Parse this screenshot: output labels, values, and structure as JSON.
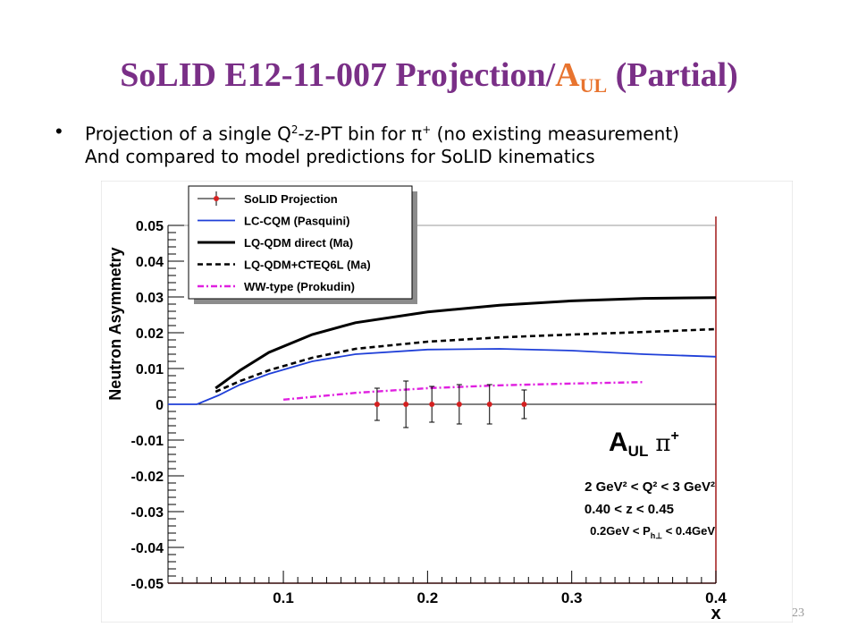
{
  "slide": {
    "title_main": "SoLID E12-11-007 Projection/",
    "title_a": "A",
    "title_sub": "UL",
    "title_tail": " (Partial)",
    "bullet_line1_pre": "Projection of a single Q",
    "bullet_line1_sup1": "2",
    "bullet_line1_mid": "-z-PT bin for π",
    "bullet_line1_sup2": "+",
    "bullet_line1_post": " (no existing measurement)",
    "bullet_line2": "And compared to model predictions for SoLID kinematics",
    "page_number": "23"
  },
  "chart_data": {
    "type": "line",
    "xlabel": "x",
    "ylabel": "Neutron Asymmetry",
    "xlim": [
      0.02,
      0.4
    ],
    "ylim": [
      -0.05,
      0.05
    ],
    "x_ticks": [
      "0.1",
      "0.2",
      "0.3",
      "0.4"
    ],
    "y_ticks": [
      "-0.05",
      "-0.04",
      "-0.03",
      "-0.02",
      "-0.01",
      "0",
      "0.01",
      "0.02",
      "0.03",
      "0.04",
      "0.05"
    ],
    "grid": false,
    "legend_position": "top-left",
    "annotation": {
      "title_a": "A",
      "title_sub": "UL",
      "title_pi": "π",
      "title_pi_sup": "+",
      "line1": "2 GeV² < Q² < 3 GeV²",
      "line2": "0.40 < z < 0.45",
      "line3": "0.2GeV < P",
      "line3_sub": "h⊥",
      "line3_tail": " < 0.4GeV"
    },
    "series": [
      {
        "name": "SoLID Projection",
        "style": "points",
        "color": "#d42020",
        "x": [
          0.165,
          0.185,
          0.203,
          0.222,
          0.243,
          0.267
        ],
        "y": [
          0,
          0,
          0,
          0,
          0,
          0
        ],
        "err": [
          0.0045,
          0.0065,
          0.005,
          0.0055,
          0.0055,
          0.004
        ]
      },
      {
        "name": "LC-CQM (Pasquini)",
        "style": "solid",
        "color": "#1f3fd8",
        "x": [
          0.02,
          0.04,
          0.055,
          0.07,
          0.09,
          0.12,
          0.15,
          0.2,
          0.25,
          0.3,
          0.35,
          0.4
        ],
        "y": [
          0,
          0,
          0.0025,
          0.0055,
          0.0085,
          0.012,
          0.014,
          0.0153,
          0.0155,
          0.015,
          0.014,
          0.0133
        ]
      },
      {
        "name": "LQ-QDM direct (Ma)",
        "style": "solid-thick",
        "color": "#000000",
        "x": [
          0.053,
          0.07,
          0.09,
          0.12,
          0.15,
          0.2,
          0.25,
          0.3,
          0.35,
          0.4
        ],
        "y": [
          0.0045,
          0.0095,
          0.0145,
          0.0195,
          0.0228,
          0.0258,
          0.0277,
          0.0289,
          0.0296,
          0.0298
        ]
      },
      {
        "name": "LQ-QDM+CTEQ6L (Ma)",
        "style": "dashed",
        "color": "#000000",
        "x": [
          0.053,
          0.07,
          0.09,
          0.12,
          0.15,
          0.2,
          0.25,
          0.3,
          0.35,
          0.4
        ],
        "y": [
          0.0035,
          0.0065,
          0.0095,
          0.013,
          0.0155,
          0.0175,
          0.0187,
          0.0195,
          0.0202,
          0.021
        ]
      },
      {
        "name": "WW-type (Prokudin)",
        "style": "dashdot",
        "color": "#e020e0",
        "x": [
          0.1,
          0.15,
          0.2,
          0.25,
          0.3,
          0.35
        ],
        "y": [
          0.0013,
          0.0032,
          0.0045,
          0.0053,
          0.0058,
          0.0062
        ]
      }
    ]
  }
}
